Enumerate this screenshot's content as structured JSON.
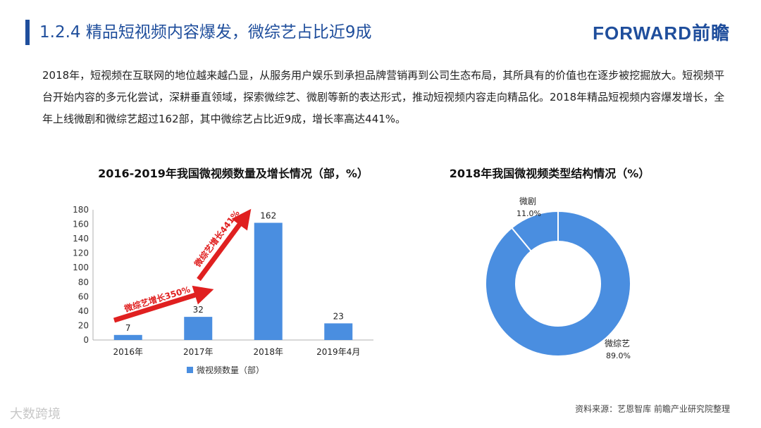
{
  "header": {
    "title": "1.2.4 精品短视频内容爆发，微综艺占比近9成",
    "logo": "FORWARD前瞻"
  },
  "paragraph": "2018年，短视频在互联网的地位越来越凸显，从服务用户娱乐到承担品牌营销再到公司生态布局，其所具有的价值也在逐步被挖掘放大。短视频平台开始内容的多元化尝试，深耕垂直领域，探索微综艺、微剧等新的表达形式，推动短视频内容走向精品化。2018年精品短视频内容爆发增长，全年上线微剧和微综艺超过162部，其中微综艺占比近9成，增长率高达441%。",
  "colors": {
    "bar": "#4a8ee0",
    "donut": "#4a8ee0",
    "arrow": "#e02020",
    "title": "#1f4e9c"
  },
  "chart_data": [
    {
      "type": "bar",
      "title": "2016-2019年我国微视频数量及增长情况（部，%）",
      "categories": [
        "2016年",
        "2017年",
        "2018年",
        "2019年4月"
      ],
      "series": [
        {
          "name": "微视频数量（部）",
          "values": [
            7,
            32,
            162,
            23
          ]
        }
      ],
      "ylim": [
        0,
        180
      ],
      "yticks": [
        0,
        20,
        40,
        60,
        80,
        100,
        120,
        140,
        160,
        180
      ],
      "annotations": [
        "微综艺增长350%",
        "微综艺增长441%"
      ],
      "legend": "bottom",
      "grid": false
    },
    {
      "type": "pie",
      "title": "2018年我国微视频类型结构情况（%）",
      "slices": [
        {
          "label": "微综艺",
          "value": 89.0,
          "value_text": "89.0%"
        },
        {
          "label": "微剧",
          "value": 11.0,
          "value_text": "11.0%"
        }
      ],
      "donut": true
    }
  ],
  "source": "资料来源：艺恩智库 前瞻产业研究院整理",
  "watermark": "大数跨境"
}
